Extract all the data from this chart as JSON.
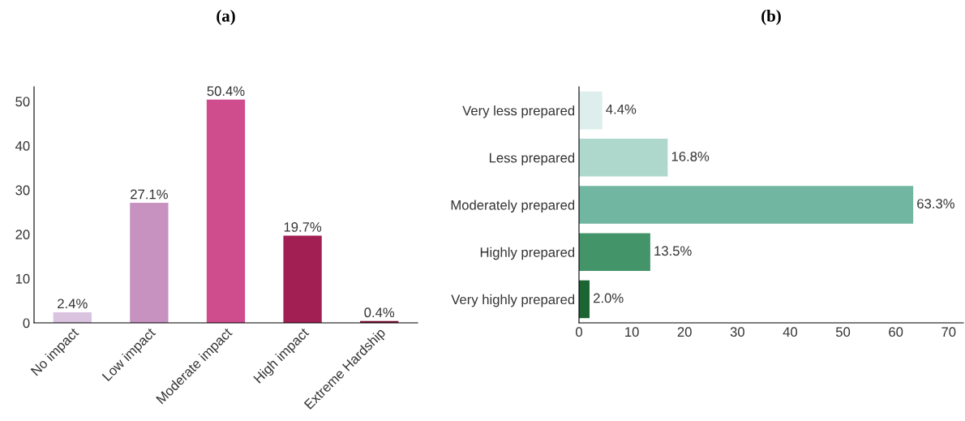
{
  "chart_data": [
    {
      "type": "bar",
      "title": "(a)",
      "categories": [
        "No impact",
        "Low impact",
        "Moderate impact",
        "High impact",
        "Extreme Hardship"
      ],
      "values": [
        2.4,
        27.1,
        50.4,
        19.7,
        0.4
      ],
      "colors": [
        "#d9c3df",
        "#c791c0",
        "#cf4c8d",
        "#a21f53",
        "#7a0f33"
      ],
      "value_labels": [
        "2.4%",
        "27.1%",
        "50.4%",
        "19.7%",
        "0.4%"
      ],
      "ylim": [
        0,
        53.3
      ],
      "yticks": [
        0,
        10,
        20,
        30,
        40,
        50
      ],
      "grid": false,
      "legend": false
    },
    {
      "type": "bar",
      "orientation": "horizontal",
      "title": "(b)",
      "categories": [
        "Very less prepared",
        "Less prepared",
        "Moderately prepared",
        "Highly prepared",
        "Very highly prepared"
      ],
      "values": [
        4.4,
        16.8,
        63.3,
        13.5,
        2.0
      ],
      "colors": [
        "#ddeeed",
        "#afd8cd",
        "#71b6a0",
        "#44946a",
        "#1a6532"
      ],
      "value_labels": [
        "4.4%",
        "16.8%",
        "63.3%",
        "13.5%",
        "2.0%"
      ],
      "xlim": [
        0,
        72.8
      ],
      "xticks": [
        0,
        10,
        20,
        30,
        40,
        50,
        60,
        70
      ],
      "grid": false,
      "legend": false
    }
  ]
}
